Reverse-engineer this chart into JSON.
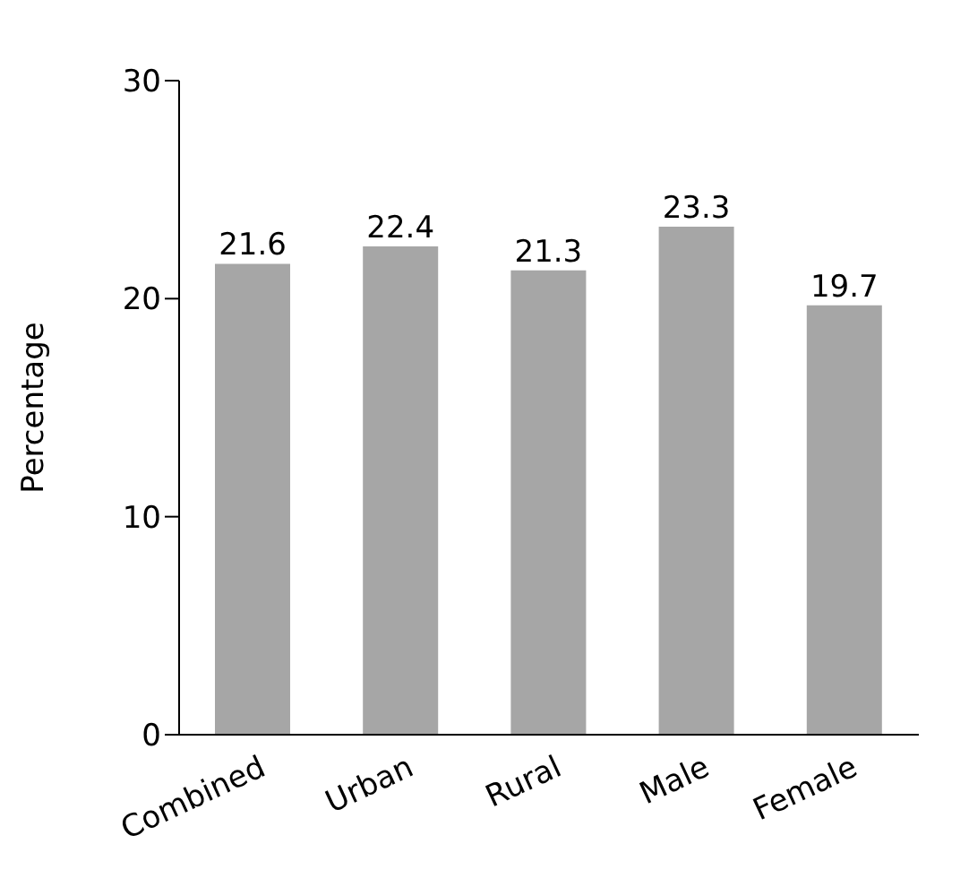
{
  "chart_data": {
    "type": "bar",
    "ylabel": "Percentage",
    "categories": [
      "Combined",
      "Urban",
      "Rural",
      "Male",
      "Female"
    ],
    "values": [
      21.6,
      22.4,
      21.3,
      23.3,
      19.7
    ],
    "color": "#a6a6a6",
    "ylim": [
      0,
      30
    ],
    "yticks": [
      0,
      10,
      20,
      30
    ],
    "grid": false,
    "data_labels": true
  }
}
